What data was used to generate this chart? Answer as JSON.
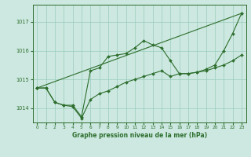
{
  "bg_color": "#cce8e0",
  "grid_color": "#99ccbb",
  "line_color": "#2d6e2d",
  "title": "Graphe pression niveau de la mer (hPa)",
  "xlim": [
    -0.5,
    23.5
  ],
  "ylim": [
    1013.5,
    1017.6
  ],
  "yticks": [
    1014,
    1015,
    1016,
    1017
  ],
  "xticks": [
    0,
    1,
    2,
    3,
    4,
    5,
    6,
    7,
    8,
    9,
    10,
    11,
    12,
    13,
    14,
    15,
    16,
    17,
    18,
    19,
    20,
    21,
    22,
    23
  ],
  "series1_x": [
    0,
    1,
    2,
    3,
    4,
    5,
    6,
    7,
    8,
    9,
    10,
    11,
    12,
    13,
    14,
    15,
    16,
    17,
    18,
    19,
    20,
    21,
    22,
    23
  ],
  "series1_y": [
    1014.7,
    1014.7,
    1014.2,
    1014.1,
    1014.1,
    1013.7,
    1015.3,
    1015.4,
    1015.8,
    1015.85,
    1015.9,
    1016.1,
    1016.35,
    1016.2,
    1016.1,
    1015.65,
    1015.2,
    1015.2,
    1015.25,
    1015.35,
    1015.5,
    1016.0,
    1016.6,
    1017.3
  ],
  "series2_x": [
    0,
    1,
    2,
    3,
    4,
    5,
    6,
    7,
    8,
    9,
    10,
    11,
    12,
    13,
    14,
    15,
    16,
    17,
    18,
    19,
    20,
    21,
    22,
    23
  ],
  "series2_y": [
    1014.7,
    1014.7,
    1014.2,
    1014.1,
    1014.05,
    1013.65,
    1014.3,
    1014.5,
    1014.6,
    1014.75,
    1014.9,
    1015.0,
    1015.1,
    1015.2,
    1015.3,
    1015.1,
    1015.2,
    1015.2,
    1015.25,
    1015.3,
    1015.4,
    1015.5,
    1015.65,
    1015.85
  ],
  "series3_x": [
    0,
    23
  ],
  "series3_y": [
    1014.7,
    1017.3
  ]
}
